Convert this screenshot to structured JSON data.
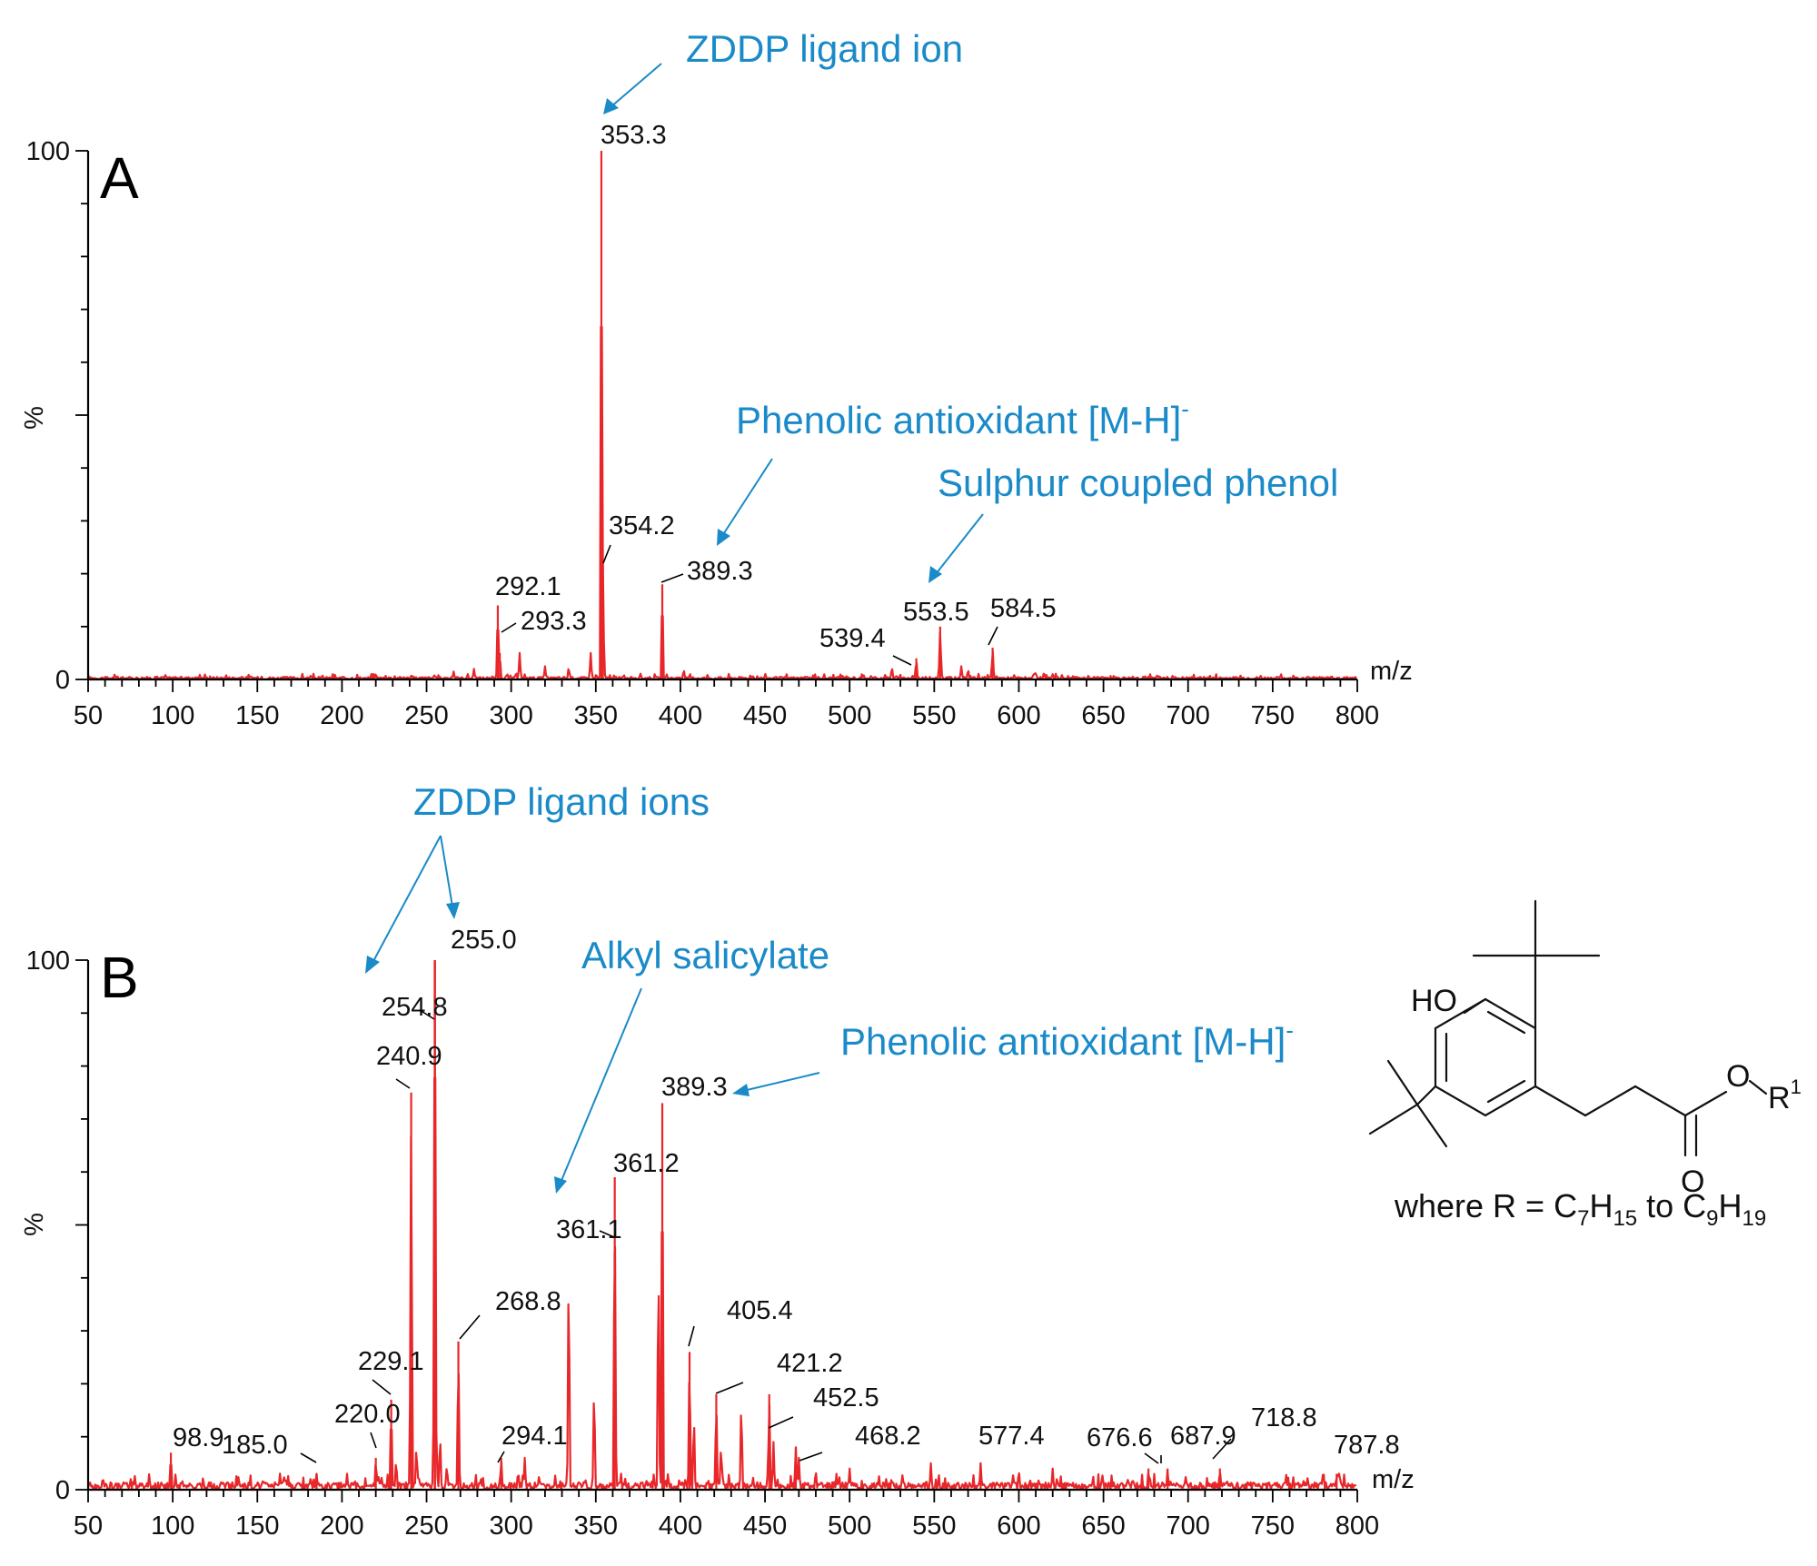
{
  "chart_data": [
    {
      "type": "line",
      "panel": "A",
      "xlabel": "m/z",
      "ylabel": "%",
      "xlim": [
        50,
        800
      ],
      "ylim": [
        0,
        100
      ],
      "x_ticks": [
        "50",
        "100",
        "150",
        "200",
        "250",
        "300",
        "350",
        "400",
        "450",
        "500",
        "550",
        "600",
        "650",
        "700",
        "750",
        "800"
      ],
      "y_ticks": [
        "0",
        "100"
      ],
      "peaks": [
        {
          "x": 292.1,
          "y": 14,
          "label": "292.1"
        },
        {
          "x": 293.3,
          "y": 5,
          "label": "293.3"
        },
        {
          "x": 353.3,
          "y": 100,
          "label": "353.3"
        },
        {
          "x": 354.2,
          "y": 22,
          "label": "354.2"
        },
        {
          "x": 389.3,
          "y": 18,
          "label": "389.3"
        },
        {
          "x": 539.4,
          "y": 4,
          "label": "539.4"
        },
        {
          "x": 553.5,
          "y": 10,
          "label": "553.5"
        },
        {
          "x": 584.5,
          "y": 6,
          "label": "584.5"
        }
      ],
      "minor_peaks": [
        {
          "x": 305,
          "y": 5
        },
        {
          "x": 320,
          "y": 2.5
        },
        {
          "x": 334,
          "y": 2.5
        },
        {
          "x": 347,
          "y": 5
        },
        {
          "x": 278,
          "y": 2
        },
        {
          "x": 266,
          "y": 1.5
        },
        {
          "x": 402,
          "y": 2
        },
        {
          "x": 525,
          "y": 2.5
        },
        {
          "x": 566,
          "y": 2.5
        },
        {
          "x": 570,
          "y": 2
        },
        {
          "x": 220,
          "y": 1.2
        },
        {
          "x": 610,
          "y": 1.5
        }
      ],
      "annotations": [
        {
          "text": "ZDDP ligand ion",
          "superscript": ""
        },
        {
          "text": "Phenolic antioxidant [M-H]",
          "superscript": "-"
        },
        {
          "text": "Sulphur coupled phenol",
          "superscript": ""
        }
      ]
    },
    {
      "type": "line",
      "panel": "B",
      "xlabel": "m/z",
      "ylabel": "%",
      "xlim": [
        50,
        800
      ],
      "ylim": [
        0,
        100
      ],
      "x_ticks": [
        "50",
        "100",
        "150",
        "200",
        "250",
        "300",
        "350",
        "400",
        "450",
        "500",
        "550",
        "600",
        "650",
        "700",
        "750",
        "800"
      ],
      "y_ticks": [
        "0",
        "100"
      ],
      "peaks": [
        {
          "x": 98.9,
          "y": 7,
          "label": "98.9"
        },
        {
          "x": 185.0,
          "y": 3,
          "label": "185.0"
        },
        {
          "x": 220.0,
          "y": 6,
          "label": "220.0"
        },
        {
          "x": 229.1,
          "y": 17,
          "label": "229.1"
        },
        {
          "x": 240.9,
          "y": 75,
          "label": "240.9"
        },
        {
          "x": 254.8,
          "y": 100,
          "label": "254.8"
        },
        {
          "x": 255.0,
          "y": 100,
          "label": "255.0"
        },
        {
          "x": 268.8,
          "y": 28,
          "label": "268.8"
        },
        {
          "x": 294.1,
          "y": 6,
          "label": "294.1"
        },
        {
          "x": 361.1,
          "y": 45,
          "label": "361.1"
        },
        {
          "x": 361.2,
          "y": 59,
          "label": "361.2"
        },
        {
          "x": 389.3,
          "y": 73,
          "label": "389.3"
        },
        {
          "x": 405.4,
          "y": 26,
          "label": "405.4"
        },
        {
          "x": 421.2,
          "y": 18,
          "label": "421.2"
        },
        {
          "x": 452.5,
          "y": 18,
          "label": "452.5"
        },
        {
          "x": 468.2,
          "y": 8,
          "label": "468.2"
        },
        {
          "x": 577.4,
          "y": 5,
          "label": "577.4"
        },
        {
          "x": 676.6,
          "y": 4,
          "label": "676.6"
        },
        {
          "x": 687.9,
          "y": 4,
          "label": "687.9"
        },
        {
          "x": 718.8,
          "y": 4,
          "label": "718.8"
        },
        {
          "x": 787.8,
          "y": 3,
          "label": "787.8"
        }
      ],
      "minor_peaks": [
        {
          "x": 387,
          "y": 47
        },
        {
          "x": 349,
          "y": 21
        },
        {
          "x": 334,
          "y": 45
        },
        {
          "x": 244,
          "y": 9
        },
        {
          "x": 258,
          "y": 11
        },
        {
          "x": 262,
          "y": 5
        },
        {
          "x": 232,
          "y": 6
        },
        {
          "x": 308,
          "y": 6
        },
        {
          "x": 408,
          "y": 15
        },
        {
          "x": 436,
          "y": 18
        },
        {
          "x": 424,
          "y": 9
        },
        {
          "x": 455,
          "y": 9
        },
        {
          "x": 470,
          "y": 6
        },
        {
          "x": 166,
          "y": 3
        },
        {
          "x": 203,
          "y": 3
        },
        {
          "x": 480,
          "y": 4
        },
        {
          "x": 500,
          "y": 4
        },
        {
          "x": 548,
          "y": 5
        },
        {
          "x": 600,
          "y": 4
        },
        {
          "x": 620,
          "y": 4
        }
      ],
      "annotations": [
        {
          "text": "ZDDP ligand ions",
          "superscript": ""
        },
        {
          "text": "Alkyl salicylate",
          "superscript": ""
        },
        {
          "text": "Phenolic antioxidant [M-H]",
          "superscript": "-"
        }
      ]
    }
  ],
  "panel_letters": [
    "A",
    "B"
  ],
  "structure": {
    "labels": {
      "hydroxyl": "HO",
      "ester_o": "O",
      "carbonyl_o": "O",
      "r_group": "R",
      "r_sup": "1"
    },
    "formula": {
      "prefix": "where R = ",
      "c1": "C",
      "c1_sub": "7",
      "h1": "H",
      "h1_sub": "15",
      "mid": " to ",
      "c2": "C",
      "c2_sub": "9",
      "h2": "H",
      "h2_sub": "19"
    }
  },
  "colors": {
    "spectrum": "#e8272a",
    "annotation": "#1a8ac8",
    "axis": "#000000"
  }
}
